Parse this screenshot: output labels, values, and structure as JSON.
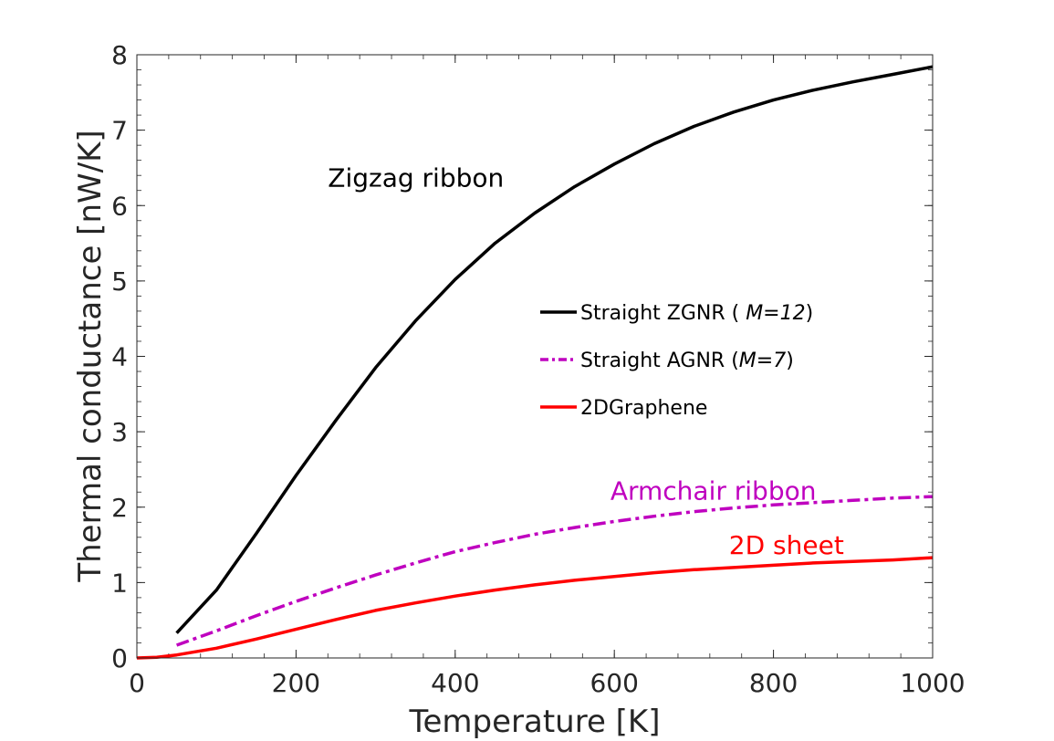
{
  "chart_data": {
    "type": "line",
    "xlabel": "Temperature [K]",
    "ylabel": "Thermal conductance [nW/K]",
    "xlim": [
      0,
      1000
    ],
    "ylim": [
      0,
      8
    ],
    "xticks": [
      0,
      200,
      400,
      600,
      800,
      1000
    ],
    "yticks": [
      0,
      1,
      2,
      3,
      4,
      5,
      6,
      7,
      8
    ],
    "grid": false,
    "legend_position": "center-right",
    "series": [
      {
        "name": "Straight ZGNR ( M=12)",
        "legend_prefix": "Straight ZGNR ( ",
        "legend_italic": "M=12",
        "legend_suffix": ")",
        "color": "#000000",
        "style": "solid",
        "x": [
          50,
          100,
          150,
          200,
          250,
          300,
          350,
          400,
          450,
          500,
          550,
          600,
          650,
          700,
          750,
          800,
          850,
          900,
          950,
          1000
        ],
        "y": [
          0.33,
          0.9,
          1.65,
          2.42,
          3.15,
          3.85,
          4.47,
          5.02,
          5.5,
          5.9,
          6.25,
          6.55,
          6.82,
          7.05,
          7.24,
          7.4,
          7.53,
          7.64,
          7.74,
          7.84
        ]
      },
      {
        "name": "Straight AGNR (M=7)",
        "legend_prefix": "Straight AGNR (",
        "legend_italic": "M=7",
        "legend_suffix": ")",
        "color": "#bf00bf",
        "style": "dashdot",
        "x": [
          50,
          100,
          150,
          200,
          250,
          300,
          350,
          400,
          450,
          500,
          550,
          600,
          650,
          700,
          750,
          800,
          850,
          900,
          950,
          1000
        ],
        "y": [
          0.17,
          0.36,
          0.56,
          0.75,
          0.93,
          1.1,
          1.26,
          1.41,
          1.53,
          1.64,
          1.73,
          1.81,
          1.88,
          1.94,
          1.99,
          2.03,
          2.06,
          2.09,
          2.12,
          2.14
        ]
      },
      {
        "name": "2DGraphene",
        "legend_prefix": "2DGraphene",
        "legend_italic": "",
        "legend_suffix": "",
        "color": "#ff0000",
        "style": "solid",
        "x": [
          0,
          25,
          50,
          100,
          150,
          200,
          250,
          300,
          350,
          400,
          450,
          500,
          550,
          600,
          650,
          700,
          750,
          800,
          850,
          900,
          950,
          1000
        ],
        "y": [
          0.0,
          0.01,
          0.04,
          0.13,
          0.25,
          0.38,
          0.51,
          0.63,
          0.73,
          0.82,
          0.9,
          0.97,
          1.03,
          1.08,
          1.13,
          1.17,
          1.2,
          1.23,
          1.26,
          1.28,
          1.3,
          1.33
        ]
      }
    ],
    "annotations": [
      {
        "text": "Zigzag ribbon",
        "x": 240,
        "y": 6.25,
        "color": "#000000"
      },
      {
        "text": "Armchair ribbon",
        "x": 595,
        "y": 2.1,
        "color": "#bf00bf"
      },
      {
        "text": "2D sheet",
        "x": 744,
        "y": 1.38,
        "color": "#ff0000"
      }
    ]
  }
}
